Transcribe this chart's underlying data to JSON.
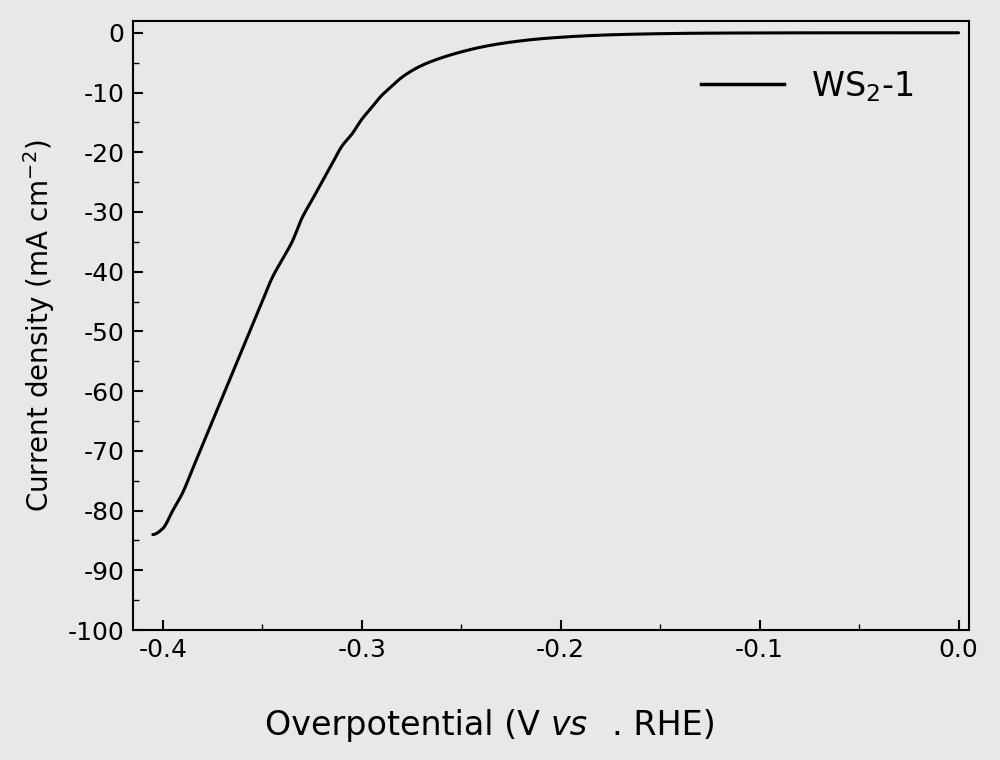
{
  "xlim": [
    -0.415,
    0.005
  ],
  "ylim": [
    -100,
    2
  ],
  "xticks": [
    -0.4,
    -0.3,
    -0.2,
    -0.1,
    0.0
  ],
  "yticks": [
    0,
    -10,
    -20,
    -30,
    -40,
    -50,
    -60,
    -70,
    -80,
    -90,
    -100
  ],
  "line_color": "#000000",
  "line_width": 2.2,
  "background_color": "#e8e8e8",
  "plot_bg_color": "#e8e8e8",
  "xlabel_fontsize": 24,
  "ylabel_fontsize": 20,
  "tick_fontsize": 18,
  "legend_fontsize": 24,
  "curve_points_x": [
    -0.405,
    -0.4,
    -0.395,
    -0.39,
    -0.385,
    -0.38,
    -0.375,
    -0.37,
    -0.365,
    -0.36,
    -0.355,
    -0.35,
    -0.345,
    -0.34,
    -0.335,
    -0.33,
    -0.325,
    -0.32,
    -0.315,
    -0.31,
    -0.305,
    -0.3,
    -0.295,
    -0.29,
    -0.285,
    -0.28,
    -0.27,
    -0.26,
    -0.25,
    -0.24,
    -0.23,
    -0.22,
    -0.21,
    -0.2,
    -0.19,
    -0.18,
    -0.17,
    -0.16,
    -0.15,
    -0.14,
    -0.13,
    -0.12,
    -0.11,
    -0.1,
    -0.09,
    -0.08,
    -0.07,
    -0.06,
    -0.05,
    -0.04,
    -0.03,
    -0.02,
    -0.01,
    0.0
  ],
  "curve_points_y": [
    -84,
    -83,
    -80,
    -77,
    -73,
    -69,
    -65,
    -61,
    -57,
    -53,
    -49,
    -45,
    -41,
    -38,
    -35,
    -31,
    -28,
    -25,
    -22,
    -19,
    -17,
    -14.5,
    -12.5,
    -10.5,
    -9.0,
    -7.5,
    -5.5,
    -4.2,
    -3.2,
    -2.4,
    -1.8,
    -1.35,
    -1.0,
    -0.75,
    -0.55,
    -0.4,
    -0.29,
    -0.21,
    -0.15,
    -0.1,
    -0.07,
    -0.05,
    -0.035,
    -0.024,
    -0.016,
    -0.01,
    -0.006,
    -0.004,
    -0.002,
    -0.001,
    -0.0005,
    -0.0002,
    -0.0001,
    0.0
  ]
}
